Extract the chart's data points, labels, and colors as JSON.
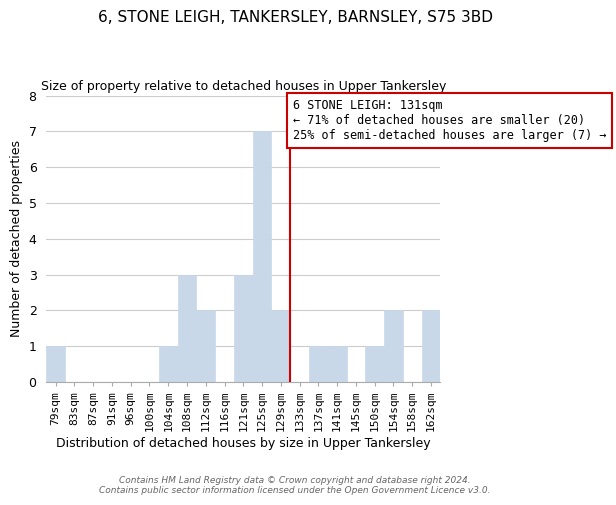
{
  "title": "6, STONE LEIGH, TANKERSLEY, BARNSLEY, S75 3BD",
  "subtitle": "Size of property relative to detached houses in Upper Tankersley",
  "xlabel": "Distribution of detached houses by size in Upper Tankersley",
  "ylabel": "Number of detached properties",
  "bins": [
    "79sqm",
    "83sqm",
    "87sqm",
    "91sqm",
    "96sqm",
    "100sqm",
    "104sqm",
    "108sqm",
    "112sqm",
    "116sqm",
    "121sqm",
    "125sqm",
    "129sqm",
    "133sqm",
    "137sqm",
    "141sqm",
    "145sqm",
    "150sqm",
    "154sqm",
    "158sqm",
    "162sqm"
  ],
  "counts": [
    1,
    0,
    0,
    0,
    0,
    0,
    1,
    3,
    2,
    0,
    3,
    7,
    2,
    0,
    1,
    1,
    0,
    1,
    2,
    0,
    2
  ],
  "bar_color": "#c8d8e8",
  "bar_edge_color": "#c8d8e8",
  "subject_line_color": "#cc0000",
  "annotation_title": "6 STONE LEIGH: 131sqm",
  "annotation_line1": "← 71% of detached houses are smaller (20)",
  "annotation_line2": "25% of semi-detached houses are larger (7) →",
  "annotation_box_color": "#ffffff",
  "annotation_box_edge_color": "#cc0000",
  "ylim": [
    0,
    8
  ],
  "yticks": [
    0,
    1,
    2,
    3,
    4,
    5,
    6,
    7,
    8
  ],
  "footer1": "Contains HM Land Registry data © Crown copyright and database right 2024.",
  "footer2": "Contains public sector information licensed under the Open Government Licence v3.0.",
  "background_color": "#ffffff",
  "grid_color": "#cccccc"
}
